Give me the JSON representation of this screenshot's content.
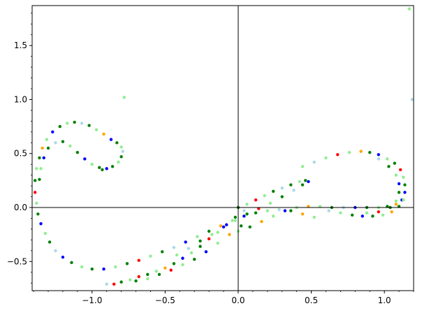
{
  "chart_data": {
    "type": "scatter",
    "title": "",
    "xlabel": "",
    "ylabel": "",
    "xlim": [
      -1.41,
      1.2
    ],
    "ylim": [
      -0.77,
      1.87
    ],
    "grid": false,
    "legend": "none",
    "x_ticks": [
      -1.0,
      -0.5,
      0.0,
      0.5,
      1.0
    ],
    "x_tick_labels": [
      "−1.0",
      "−0.5",
      "0.0",
      "0.5",
      "1.0"
    ],
    "y_ticks": [
      -0.5,
      0.0,
      0.5,
      1.0,
      1.5
    ],
    "y_tick_labels": [
      "−0.5",
      "0.0",
      "0.5",
      "1.0",
      "1.5"
    ],
    "axes_through_origin": true,
    "palette": [
      "#0000ff",
      "#008000",
      "#90ee90",
      "#add8e6",
      "#ffa500",
      "#ff0000"
    ],
    "points": [
      {
        "x": -0.78,
        "y": 1.02,
        "color": "#90ee90"
      },
      {
        "x": 1.17,
        "y": 1.84,
        "color": "#90ee90"
      },
      {
        "x": 1.19,
        "y": 1.0,
        "color": "#add8e6"
      },
      {
        "x": -0.93,
        "y": 0.35,
        "color": "#008000"
      },
      {
        "x": -0.9,
        "y": 0.36,
        "color": "#0000ff"
      },
      {
        "x": -0.86,
        "y": 0.38,
        "color": "#008000"
      },
      {
        "x": -0.82,
        "y": 0.42,
        "color": "#90ee90"
      },
      {
        "x": -0.8,
        "y": 0.47,
        "color": "#008000"
      },
      {
        "x": -0.79,
        "y": 0.52,
        "color": "#add8e6"
      },
      {
        "x": -0.8,
        "y": 0.56,
        "color": "#90ee90"
      },
      {
        "x": -0.83,
        "y": 0.6,
        "color": "#008000"
      },
      {
        "x": -0.87,
        "y": 0.63,
        "color": "#0000ff"
      },
      {
        "x": -0.92,
        "y": 0.68,
        "color": "#ffa500"
      },
      {
        "x": -0.97,
        "y": 0.72,
        "color": "#90ee90"
      },
      {
        "x": -1.02,
        "y": 0.76,
        "color": "#008000"
      },
      {
        "x": -1.07,
        "y": 0.78,
        "color": "#add8e6"
      },
      {
        "x": -1.12,
        "y": 0.79,
        "color": "#008000"
      },
      {
        "x": -1.17,
        "y": 0.78,
        "color": "#90ee90"
      },
      {
        "x": -1.22,
        "y": 0.75,
        "color": "#008000"
      },
      {
        "x": -1.27,
        "y": 0.7,
        "color": "#0000ff"
      },
      {
        "x": -1.31,
        "y": 0.63,
        "color": "#90ee90"
      },
      {
        "x": -1.34,
        "y": 0.55,
        "color": "#ffa500"
      },
      {
        "x": -1.36,
        "y": 0.46,
        "color": "#008000"
      },
      {
        "x": -1.38,
        "y": 0.36,
        "color": "#90ee90"
      },
      {
        "x": -1.39,
        "y": 0.25,
        "color": "#008000"
      },
      {
        "x": -1.39,
        "y": 0.14,
        "color": "#ff0000"
      },
      {
        "x": -1.38,
        "y": 0.04,
        "color": "#90ee90"
      },
      {
        "x": -1.37,
        "y": -0.06,
        "color": "#008000"
      },
      {
        "x": -1.35,
        "y": -0.15,
        "color": "#0000ff"
      },
      {
        "x": -1.32,
        "y": -0.24,
        "color": "#90ee90"
      },
      {
        "x": -1.29,
        "y": -0.32,
        "color": "#008000"
      },
      {
        "x": -1.25,
        "y": -0.4,
        "color": "#add8e6"
      },
      {
        "x": -1.2,
        "y": -0.46,
        "color": "#0000ff"
      },
      {
        "x": -1.14,
        "y": -0.51,
        "color": "#008000"
      },
      {
        "x": -1.07,
        "y": -0.55,
        "color": "#90ee90"
      },
      {
        "x": -1.0,
        "y": -0.57,
        "color": "#008000"
      },
      {
        "x": -0.92,
        "y": -0.57,
        "color": "#0000ff"
      },
      {
        "x": -0.84,
        "y": -0.55,
        "color": "#90ee90"
      },
      {
        "x": -0.76,
        "y": -0.52,
        "color": "#008000"
      },
      {
        "x": -0.68,
        "y": -0.49,
        "color": "#ff0000"
      },
      {
        "x": -0.6,
        "y": -0.45,
        "color": "#90ee90"
      },
      {
        "x": -0.52,
        "y": -0.41,
        "color": "#008000"
      },
      {
        "x": -0.44,
        "y": -0.37,
        "color": "#add8e6"
      },
      {
        "x": -0.36,
        "y": -0.32,
        "color": "#0000ff"
      },
      {
        "x": -0.28,
        "y": -0.27,
        "color": "#90ee90"
      },
      {
        "x": -0.2,
        "y": -0.22,
        "color": "#008000"
      },
      {
        "x": -0.12,
        "y": -0.17,
        "color": "#ffa500"
      },
      {
        "x": -0.04,
        "y": -0.12,
        "color": "#90ee90"
      },
      {
        "x": 0.04,
        "y": -0.08,
        "color": "#0000ff"
      },
      {
        "x": 0.12,
        "y": -0.05,
        "color": "#008000"
      },
      {
        "x": 0.2,
        "y": -0.03,
        "color": "#90ee90"
      },
      {
        "x": 0.28,
        "y": -0.02,
        "color": "#add8e6"
      },
      {
        "x": 0.36,
        "y": -0.03,
        "color": "#008000"
      },
      {
        "x": 0.44,
        "y": -0.06,
        "color": "#ffa500"
      },
      {
        "x": 0.52,
        "y": -0.09,
        "color": "#90ee90"
      },
      {
        "x": -0.95,
        "y": 0.37,
        "color": "#008000"
      },
      {
        "x": -1.0,
        "y": 0.4,
        "color": "#90ee90"
      },
      {
        "x": -1.05,
        "y": 0.45,
        "color": "#0000ff"
      },
      {
        "x": -1.1,
        "y": 0.51,
        "color": "#008000"
      },
      {
        "x": -1.15,
        "y": 0.57,
        "color": "#90ee90"
      },
      {
        "x": -1.2,
        "y": 0.61,
        "color": "#008000"
      },
      {
        "x": -1.25,
        "y": 0.6,
        "color": "#add8e6"
      },
      {
        "x": -1.3,
        "y": 0.55,
        "color": "#008000"
      },
      {
        "x": -1.33,
        "y": 0.46,
        "color": "#0000ff"
      },
      {
        "x": -1.35,
        "y": 0.36,
        "color": "#90ee90"
      },
      {
        "x": -1.36,
        "y": 0.26,
        "color": "#008000"
      },
      {
        "x": -0.9,
        "y": -0.71,
        "color": "#add8e6"
      },
      {
        "x": -0.85,
        "y": -0.71,
        "color": "#ff0000"
      },
      {
        "x": -0.8,
        "y": -0.69,
        "color": "#008000"
      },
      {
        "x": -0.74,
        "y": -0.67,
        "color": "#90ee90"
      },
      {
        "x": -0.68,
        "y": -0.64,
        "color": "#ff0000"
      },
      {
        "x": -0.62,
        "y": -0.62,
        "color": "#008000"
      },
      {
        "x": -0.56,
        "y": -0.59,
        "color": "#90ee90"
      },
      {
        "x": -0.5,
        "y": -0.56,
        "color": "#ffa500"
      },
      {
        "x": -0.44,
        "y": -0.52,
        "color": "#008000"
      },
      {
        "x": -0.38,
        "y": -0.47,
        "color": "#0000ff"
      },
      {
        "x": -0.32,
        "y": -0.42,
        "color": "#90ee90"
      },
      {
        "x": -0.26,
        "y": -0.36,
        "color": "#008000"
      },
      {
        "x": -0.2,
        "y": -0.29,
        "color": "#ff0000"
      },
      {
        "x": -0.14,
        "y": -0.23,
        "color": "#90ee90"
      },
      {
        "x": -0.08,
        "y": -0.16,
        "color": "#0000ff"
      },
      {
        "x": -0.02,
        "y": -0.09,
        "color": "#008000"
      },
      {
        "x": 0.04,
        "y": -0.03,
        "color": "#add8e6"
      },
      {
        "x": -0.7,
        "y": -0.68,
        "color": "#008000"
      },
      {
        "x": -0.62,
        "y": -0.66,
        "color": "#90ee90"
      },
      {
        "x": -0.54,
        "y": -0.62,
        "color": "#008000"
      },
      {
        "x": -0.46,
        "y": -0.58,
        "color": "#ff0000"
      },
      {
        "x": -0.38,
        "y": -0.53,
        "color": "#90ee90"
      },
      {
        "x": -0.3,
        "y": -0.48,
        "color": "#008000"
      },
      {
        "x": -0.22,
        "y": -0.41,
        "color": "#0000ff"
      },
      {
        "x": -0.14,
        "y": -0.33,
        "color": "#90ee90"
      },
      {
        "x": -0.06,
        "y": -0.25,
        "color": "#ffa500"
      },
      {
        "x": 0.02,
        "y": -0.17,
        "color": "#008000"
      },
      {
        "x": -0.42,
        "y": -0.44,
        "color": "#90ee90"
      },
      {
        "x": -0.34,
        "y": -0.38,
        "color": "#add8e6"
      },
      {
        "x": -0.26,
        "y": -0.31,
        "color": "#008000"
      },
      {
        "x": -0.18,
        "y": -0.25,
        "color": "#90ee90"
      },
      {
        "x": -0.1,
        "y": -0.18,
        "color": "#0000ff"
      },
      {
        "x": -0.02,
        "y": -0.12,
        "color": "#90ee90"
      },
      {
        "x": 0.06,
        "y": -0.06,
        "color": "#008000"
      },
      {
        "x": 0.14,
        "y": -0.01,
        "color": "#ff0000"
      },
      {
        "x": 0.22,
        "y": 0.04,
        "color": "#90ee90"
      },
      {
        "x": 0.3,
        "y": 0.1,
        "color": "#008000"
      },
      {
        "x": 0.38,
        "y": 0.16,
        "color": "#add8e6"
      },
      {
        "x": 0.44,
        "y": 0.21,
        "color": "#008000"
      },
      {
        "x": 0.48,
        "y": 0.24,
        "color": "#0000ff"
      },
      {
        "x": 0.0,
        "y": 0.0,
        "color": "#008000"
      },
      {
        "x": 0.06,
        "y": 0.03,
        "color": "#90ee90"
      },
      {
        "x": 0.12,
        "y": 0.07,
        "color": "#ff0000"
      },
      {
        "x": 0.18,
        "y": 0.11,
        "color": "#90ee90"
      },
      {
        "x": 0.24,
        "y": 0.15,
        "color": "#008000"
      },
      {
        "x": 0.3,
        "y": 0.18,
        "color": "#add8e6"
      },
      {
        "x": 0.36,
        "y": 0.21,
        "color": "#008000"
      },
      {
        "x": 0.42,
        "y": 0.24,
        "color": "#90ee90"
      },
      {
        "x": 0.46,
        "y": 0.25,
        "color": "#008000"
      },
      {
        "x": 0.0,
        "y": -0.22,
        "color": "#90ee90"
      },
      {
        "x": 0.08,
        "y": -0.18,
        "color": "#008000"
      },
      {
        "x": 0.16,
        "y": -0.13,
        "color": "#ffa500"
      },
      {
        "x": 0.24,
        "y": -0.08,
        "color": "#90ee90"
      },
      {
        "x": 0.32,
        "y": -0.03,
        "color": "#0000ff"
      },
      {
        "x": 0.4,
        "y": 0.0,
        "color": "#90ee90"
      },
      {
        "x": 0.48,
        "y": 0.01,
        "color": "#ffa500"
      },
      {
        "x": 0.56,
        "y": 0.01,
        "color": "#90ee90"
      },
      {
        "x": 0.64,
        "y": 0.0,
        "color": "#008000"
      },
      {
        "x": 0.72,
        "y": 0.0,
        "color": "#add8e6"
      },
      {
        "x": 0.8,
        "y": 0.0,
        "color": "#0000ff"
      },
      {
        "x": 0.88,
        "y": 0.0,
        "color": "#008000"
      },
      {
        "x": 0.96,
        "y": 0.0,
        "color": "#90ee90"
      },
      {
        "x": 1.02,
        "y": 0.01,
        "color": "#008000"
      },
      {
        "x": 1.08,
        "y": 0.03,
        "color": "#ffa500"
      },
      {
        "x": 1.12,
        "y": 0.07,
        "color": "#0000ff"
      },
      {
        "x": 0.44,
        "y": 0.38,
        "color": "#90ee90"
      },
      {
        "x": 0.52,
        "y": 0.42,
        "color": "#add8e6"
      },
      {
        "x": 0.6,
        "y": 0.46,
        "color": "#90ee90"
      },
      {
        "x": 0.68,
        "y": 0.49,
        "color": "#ff0000"
      },
      {
        "x": 0.76,
        "y": 0.51,
        "color": "#90ee90"
      },
      {
        "x": 0.84,
        "y": 0.52,
        "color": "#ffa500"
      },
      {
        "x": 0.9,
        "y": 0.51,
        "color": "#008000"
      },
      {
        "x": 0.96,
        "y": 0.49,
        "color": "#0000ff"
      },
      {
        "x": 1.02,
        "y": 0.45,
        "color": "#90ee90"
      },
      {
        "x": 1.07,
        "y": 0.41,
        "color": "#008000"
      },
      {
        "x": 1.11,
        "y": 0.35,
        "color": "#ff0000"
      },
      {
        "x": 1.13,
        "y": 0.28,
        "color": "#90ee90"
      },
      {
        "x": 1.14,
        "y": 0.21,
        "color": "#008000"
      },
      {
        "x": 1.14,
        "y": 0.14,
        "color": "#0000ff"
      },
      {
        "x": 1.13,
        "y": 0.07,
        "color": "#90ee90"
      },
      {
        "x": 1.1,
        "y": 0.01,
        "color": "#008000"
      },
      {
        "x": 1.05,
        "y": -0.04,
        "color": "#ffa500"
      },
      {
        "x": 0.99,
        "y": -0.07,
        "color": "#90ee90"
      },
      {
        "x": 0.92,
        "y": -0.08,
        "color": "#008000"
      },
      {
        "x": 0.85,
        "y": -0.08,
        "color": "#0000ff"
      },
      {
        "x": 0.78,
        "y": -0.07,
        "color": "#008000"
      },
      {
        "x": 0.7,
        "y": -0.05,
        "color": "#90ee90"
      },
      {
        "x": 0.62,
        "y": -0.03,
        "color": "#add8e6"
      },
      {
        "x": 0.96,
        "y": 0.45,
        "color": "#add8e6"
      },
      {
        "x": 1.03,
        "y": 0.38,
        "color": "#008000"
      },
      {
        "x": 1.08,
        "y": 0.3,
        "color": "#90ee90"
      },
      {
        "x": 1.1,
        "y": 0.22,
        "color": "#0000ff"
      },
      {
        "x": 1.1,
        "y": 0.14,
        "color": "#008000"
      },
      {
        "x": 1.08,
        "y": 0.06,
        "color": "#90ee90"
      },
      {
        "x": 1.04,
        "y": 0.0,
        "color": "#008000"
      },
      {
        "x": 0.96,
        "y": -0.04,
        "color": "#ff0000"
      },
      {
        "x": 0.88,
        "y": -0.05,
        "color": "#90ee90"
      }
    ]
  }
}
